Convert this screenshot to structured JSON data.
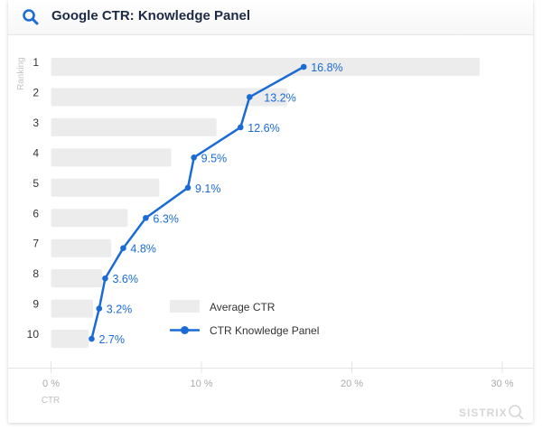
{
  "header": {
    "title": "Google CTR: Knowledge Panel",
    "icon": "search-icon"
  },
  "brand": {
    "logo_text": "SISTRIX"
  },
  "colors": {
    "line": "#1a6bd6",
    "bar": "#ececec",
    "label": "#1a6bd6"
  },
  "chart_data": {
    "type": "bar",
    "orientation": "horizontal",
    "categories": [
      "1",
      "2",
      "3",
      "4",
      "5",
      "6",
      "7",
      "8",
      "9",
      "10"
    ],
    "ylabel": "Ranking",
    "xlabel": "CTR",
    "xlim": [
      0,
      30
    ],
    "xticks": [
      "0 %",
      "10 %",
      "20 %",
      "30 %"
    ],
    "series": [
      {
        "name": "Average CTR",
        "type": "bar",
        "values": [
          28.5,
          15.7,
          11.0,
          8.0,
          7.2,
          5.1,
          4.0,
          3.4,
          2.8,
          2.5
        ]
      },
      {
        "name": "CTR Knowledge Panel",
        "type": "line",
        "values": [
          16.8,
          13.2,
          12.6,
          9.5,
          9.1,
          6.3,
          4.8,
          3.6,
          3.2,
          2.7
        ],
        "labels": [
          "16.8%",
          "13.2%",
          "12.6%",
          "9.5%",
          "9.1%",
          "6.3%",
          "4.8%",
          "3.6%",
          "3.2%",
          "2.7%"
        ]
      }
    ],
    "legend": "center-bottom"
  }
}
